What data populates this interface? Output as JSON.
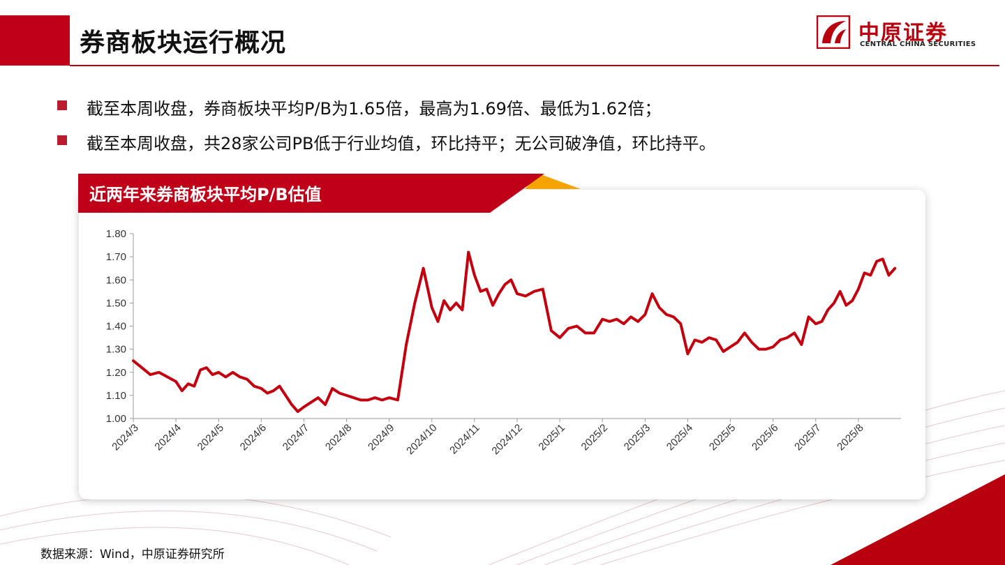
{
  "page": {
    "title": "券商板块运行概况",
    "source": "数据来源：Wind，中原证券研究所"
  },
  "logo": {
    "name_cn": "中原证券",
    "name_en": "CENTRAL CHINA SECURITIES"
  },
  "colors": {
    "brand_red": "#c00018",
    "line_red": "#c4000f",
    "accent_orange": "#f5a300"
  },
  "bullets": [
    "截至本周收盘，券商板块平均P/B为1.65倍，最高为1.69倍、最低为1.62倍；",
    "截至本周收盘，共28家公司PB低于行业均值，环比持平；无公司破净值，环比持平。"
  ],
  "chart_card": {
    "title": "近两年来券商板块平均P/B估值"
  },
  "chart_data": {
    "type": "line",
    "title": "近两年来券商板块平均P/B估值",
    "xlabel": "",
    "ylabel": "",
    "ylim": [
      1.0,
      1.8
    ],
    "yticks": [
      "1.00",
      "1.10",
      "1.20",
      "1.30",
      "1.40",
      "1.50",
      "1.60",
      "1.70",
      "1.80"
    ],
    "xticks": [
      "2024/3",
      "2024/4",
      "2024/5",
      "2024/6",
      "2024/7",
      "2024/8",
      "2024/9",
      "2024/10",
      "2024/11",
      "2024/12",
      "2025/1",
      "2025/2",
      "2025/3",
      "2025/4",
      "2025/5",
      "2025/6",
      "2025/7",
      "2025/8"
    ],
    "grid": false,
    "legend": "none",
    "series": [
      {
        "values": [
          [
            "2024/3",
            1.25
          ],
          [
            "2024/3",
            1.22
          ],
          [
            "2024/3",
            1.19
          ],
          [
            "2024/3",
            1.2
          ],
          [
            "2024/3",
            1.18
          ],
          [
            "2024/4",
            1.16
          ],
          [
            "2024/4",
            1.12
          ],
          [
            "2024/4",
            1.15
          ],
          [
            "2024/4",
            1.14
          ],
          [
            "2024/4",
            1.21
          ],
          [
            "2024/4",
            1.22
          ],
          [
            "2024/4",
            1.19
          ],
          [
            "2024/5",
            1.2
          ],
          [
            "2024/5",
            1.18
          ],
          [
            "2024/5",
            1.2
          ],
          [
            "2024/5",
            1.18
          ],
          [
            "2024/5",
            1.17
          ],
          [
            "2024/5",
            1.14
          ],
          [
            "2024/6",
            1.13
          ],
          [
            "2024/6",
            1.11
          ],
          [
            "2024/6",
            1.12
          ],
          [
            "2024/6",
            1.14
          ],
          [
            "2024/6",
            1.1
          ],
          [
            "2024/6",
            1.06
          ],
          [
            "2024/6",
            1.03
          ],
          [
            "2024/7",
            1.05
          ],
          [
            "2024/7",
            1.07
          ],
          [
            "2024/7",
            1.09
          ],
          [
            "2024/7",
            1.06
          ],
          [
            "2024/7",
            1.13
          ],
          [
            "2024/7",
            1.11
          ],
          [
            "2024/8",
            1.1
          ],
          [
            "2024/8",
            1.09
          ],
          [
            "2024/8",
            1.08
          ],
          [
            "2024/8",
            1.08
          ],
          [
            "2024/8",
            1.09
          ],
          [
            "2024/8",
            1.08
          ],
          [
            "2024/9",
            1.09
          ],
          [
            "2024/9",
            1.08
          ],
          [
            "2024/9",
            1.32
          ],
          [
            "2024/9",
            1.5
          ],
          [
            "2024/9",
            1.65
          ],
          [
            "2024/10",
            1.48
          ],
          [
            "2024/10",
            1.42
          ],
          [
            "2024/10",
            1.51
          ],
          [
            "2024/10",
            1.47
          ],
          [
            "2024/10",
            1.5
          ],
          [
            "2024/10",
            1.47
          ],
          [
            "2024/10",
            1.72
          ],
          [
            "2024/11",
            1.62
          ],
          [
            "2024/11",
            1.55
          ],
          [
            "2024/11",
            1.56
          ],
          [
            "2024/11",
            1.49
          ],
          [
            "2024/11",
            1.54
          ],
          [
            "2024/11",
            1.58
          ],
          [
            "2024/11",
            1.6
          ],
          [
            "2024/12",
            1.54
          ],
          [
            "2024/12",
            1.53
          ],
          [
            "2024/12",
            1.55
          ],
          [
            "2024/12",
            1.56
          ],
          [
            "2024/12",
            1.38
          ],
          [
            "2025/1",
            1.35
          ],
          [
            "2025/1",
            1.39
          ],
          [
            "2025/1",
            1.4
          ],
          [
            "2025/1",
            1.37
          ],
          [
            "2025/1",
            1.37
          ],
          [
            "2025/2",
            1.43
          ],
          [
            "2025/2",
            1.42
          ],
          [
            "2025/2",
            1.43
          ],
          [
            "2025/2",
            1.41
          ],
          [
            "2025/2",
            1.44
          ],
          [
            "2025/2",
            1.42
          ],
          [
            "2025/3",
            1.45
          ],
          [
            "2025/3",
            1.54
          ],
          [
            "2025/3",
            1.48
          ],
          [
            "2025/3",
            1.45
          ],
          [
            "2025/3",
            1.44
          ],
          [
            "2025/3",
            1.41
          ],
          [
            "2025/4",
            1.28
          ],
          [
            "2025/4",
            1.34
          ],
          [
            "2025/4",
            1.33
          ],
          [
            "2025/4",
            1.35
          ],
          [
            "2025/4",
            1.34
          ],
          [
            "2025/4",
            1.29
          ],
          [
            "2025/5",
            1.31
          ],
          [
            "2025/5",
            1.33
          ],
          [
            "2025/5",
            1.37
          ],
          [
            "2025/5",
            1.33
          ],
          [
            "2025/5",
            1.3
          ],
          [
            "2025/5",
            1.3
          ],
          [
            "2025/6",
            1.31
          ],
          [
            "2025/6",
            1.34
          ],
          [
            "2025/6",
            1.35
          ],
          [
            "2025/6",
            1.37
          ],
          [
            "2025/6",
            1.32
          ],
          [
            "2025/6",
            1.44
          ],
          [
            "2025/7",
            1.41
          ],
          [
            "2025/7",
            1.42
          ],
          [
            "2025/7",
            1.47
          ],
          [
            "2025/7",
            1.5
          ],
          [
            "2025/7",
            1.55
          ],
          [
            "2025/7",
            1.49
          ],
          [
            "2025/7",
            1.51
          ],
          [
            "2025/8",
            1.56
          ],
          [
            "2025/8",
            1.63
          ],
          [
            "2025/8",
            1.62
          ],
          [
            "2025/8",
            1.68
          ],
          [
            "2025/8",
            1.69
          ],
          [
            "2025/8",
            1.62
          ],
          [
            "2025/8",
            1.65
          ]
        ]
      }
    ]
  }
}
